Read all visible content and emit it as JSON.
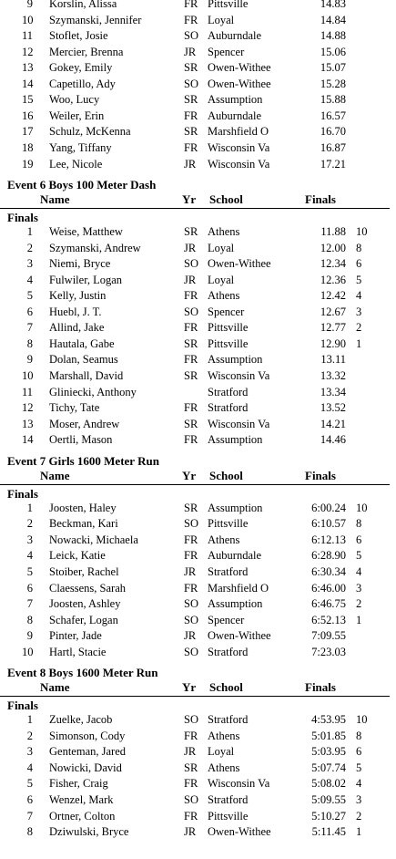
{
  "headers": {
    "name": "Name",
    "yr": "Yr",
    "school": "School",
    "finals": "Finals"
  },
  "partial_results": [
    {
      "place": "9",
      "name": "Korslin, Alissa",
      "yr": "FR",
      "school": "Pittsville",
      "time": "14.83",
      "points": ""
    },
    {
      "place": "10",
      "name": "Szymanski, Jennifer",
      "yr": "FR",
      "school": "Loyal",
      "time": "14.84",
      "points": ""
    },
    {
      "place": "11",
      "name": "Stoflet, Josie",
      "yr": "SO",
      "school": "Auburndale",
      "time": "14.88",
      "points": ""
    },
    {
      "place": "12",
      "name": "Mercier, Brenna",
      "yr": "JR",
      "school": "Spencer",
      "time": "15.06",
      "points": ""
    },
    {
      "place": "13",
      "name": "Gokey, Emily",
      "yr": "SR",
      "school": "Owen-Withee",
      "time": "15.07",
      "points": ""
    },
    {
      "place": "14",
      "name": "Capetillo, Ady",
      "yr": "SO",
      "school": "Owen-Withee",
      "time": "15.28",
      "points": ""
    },
    {
      "place": "15",
      "name": "Woo, Lucy",
      "yr": "SR",
      "school": "Assumption",
      "time": "15.88",
      "points": ""
    },
    {
      "place": "16",
      "name": "Weiler, Erin",
      "yr": "FR",
      "school": "Auburndale",
      "time": "16.57",
      "points": ""
    },
    {
      "place": "17",
      "name": "Schulz, McKenna",
      "yr": "SR",
      "school": "Marshfield O",
      "time": "16.70",
      "points": ""
    },
    {
      "place": "18",
      "name": "Yang, Tiffany",
      "yr": "FR",
      "school": "Wisconsin Va",
      "time": "16.87",
      "points": ""
    },
    {
      "place": "19",
      "name": "Lee, Nicole",
      "yr": "JR",
      "school": "Wisconsin Va",
      "time": "17.21",
      "points": ""
    }
  ],
  "events": [
    {
      "title": "Event 6  Boys 100 Meter Dash",
      "section": "Finals",
      "results": [
        {
          "place": "1",
          "name": "Weise, Matthew",
          "yr": "SR",
          "school": "Athens",
          "time": "11.88",
          "points": "10"
        },
        {
          "place": "2",
          "name": "Szymanski, Andrew",
          "yr": "JR",
          "school": "Loyal",
          "time": "12.00",
          "points": "8"
        },
        {
          "place": "3",
          "name": "Niemi, Bryce",
          "yr": "SO",
          "school": "Owen-Withee",
          "time": "12.34",
          "points": "6"
        },
        {
          "place": "4",
          "name": "Fulwiler, Logan",
          "yr": "JR",
          "school": "Loyal",
          "time": "12.36",
          "points": "5"
        },
        {
          "place": "5",
          "name": "Kelly, Justin",
          "yr": "FR",
          "school": "Athens",
          "time": "12.42",
          "points": "4"
        },
        {
          "place": "6",
          "name": "Huebl, J. T.",
          "yr": "SO",
          "school": "Spencer",
          "time": "12.67",
          "points": "3"
        },
        {
          "place": "7",
          "name": "Allind, Jake",
          "yr": "FR",
          "school": "Pittsville",
          "time": "12.77",
          "points": "2"
        },
        {
          "place": "8",
          "name": "Hautala, Gabe",
          "yr": "SR",
          "school": "Pittsville",
          "time": "12.90",
          "points": "1"
        },
        {
          "place": "9",
          "name": "Dolan, Seamus",
          "yr": "FR",
          "school": "Assumption",
          "time": "13.11",
          "points": ""
        },
        {
          "place": "10",
          "name": "Marshall, David",
          "yr": "SR",
          "school": "Wisconsin Va",
          "time": "13.32",
          "points": ""
        },
        {
          "place": "11",
          "name": "Gliniecki, Anthony",
          "yr": "",
          "school": "Stratford",
          "time": "13.34",
          "points": ""
        },
        {
          "place": "12",
          "name": "Tichy, Tate",
          "yr": "FR",
          "school": "Stratford",
          "time": "13.52",
          "points": ""
        },
        {
          "place": "13",
          "name": "Moser, Andrew",
          "yr": "SR",
          "school": "Wisconsin Va",
          "time": "14.21",
          "points": ""
        },
        {
          "place": "14",
          "name": "Oertli, Mason",
          "yr": "FR",
          "school": "Assumption",
          "time": "14.46",
          "points": ""
        }
      ]
    },
    {
      "title": "Event 7  Girls 1600 Meter Run",
      "section": "Finals",
      "results": [
        {
          "place": "1",
          "name": "Joosten, Haley",
          "yr": "SR",
          "school": "Assumption",
          "time": "6:00.24",
          "points": "10"
        },
        {
          "place": "2",
          "name": "Beckman, Kari",
          "yr": "SO",
          "school": "Pittsville",
          "time": "6:10.57",
          "points": "8"
        },
        {
          "place": "3",
          "name": "Nowacki, Michaela",
          "yr": "FR",
          "school": "Athens",
          "time": "6:12.13",
          "points": "6"
        },
        {
          "place": "4",
          "name": "Leick, Katie",
          "yr": "FR",
          "school": "Auburndale",
          "time": "6:28.90",
          "points": "5"
        },
        {
          "place": "5",
          "name": "Stoiber, Rachel",
          "yr": "JR",
          "school": "Stratford",
          "time": "6:30.34",
          "points": "4"
        },
        {
          "place": "6",
          "name": "Claessens, Sarah",
          "yr": "FR",
          "school": "Marshfield O",
          "time": "6:46.00",
          "points": "3"
        },
        {
          "place": "7",
          "name": "Joosten, Ashley",
          "yr": "SO",
          "school": "Assumption",
          "time": "6:46.75",
          "points": "2"
        },
        {
          "place": "8",
          "name": "Schafer, Logan",
          "yr": "SO",
          "school": "Spencer",
          "time": "6:52.13",
          "points": "1"
        },
        {
          "place": "9",
          "name": "Pinter, Jade",
          "yr": "JR",
          "school": "Owen-Withee",
          "time": "7:09.55",
          "points": ""
        },
        {
          "place": "10",
          "name": "Hartl, Stacie",
          "yr": "SO",
          "school": "Stratford",
          "time": "7:23.03",
          "points": ""
        }
      ]
    },
    {
      "title": "Event 8  Boys 1600 Meter Run",
      "section": "Finals",
      "results": [
        {
          "place": "1",
          "name": "Zuelke, Jacob",
          "yr": "SO",
          "school": "Stratford",
          "time": "4:53.95",
          "points": "10"
        },
        {
          "place": "2",
          "name": "Simonson, Cody",
          "yr": "FR",
          "school": "Athens",
          "time": "5:01.85",
          "points": "8"
        },
        {
          "place": "3",
          "name": "Genteman, Jared",
          "yr": "JR",
          "school": "Loyal",
          "time": "5:03.95",
          "points": "6"
        },
        {
          "place": "4",
          "name": "Nowicki, David",
          "yr": "SR",
          "school": "Athens",
          "time": "5:07.74",
          "points": "5"
        },
        {
          "place": "5",
          "name": "Fisher, Craig",
          "yr": "FR",
          "school": "Wisconsin Va",
          "time": "5:08.02",
          "points": "4"
        },
        {
          "place": "6",
          "name": "Wenzel, Mark",
          "yr": "SO",
          "school": "Stratford",
          "time": "5:09.55",
          "points": "3"
        },
        {
          "place": "7",
          "name": "Ortner, Colton",
          "yr": "FR",
          "school": "Pittsville",
          "time": "5:10.27",
          "points": "2"
        },
        {
          "place": "8",
          "name": "Dziwulski, Bryce",
          "yr": "JR",
          "school": "Owen-Withee",
          "time": "5:11.45",
          "points": "1"
        }
      ]
    }
  ]
}
